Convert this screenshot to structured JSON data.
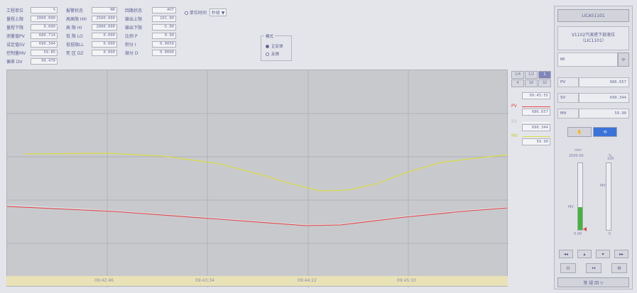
{
  "header": {
    "col1": [
      {
        "label": "工程单位",
        "value": "%"
      },
      {
        "label": "量程上限",
        "value": "2000.000"
      },
      {
        "label": "量程下限",
        "value": "0.000"
      },
      {
        "label": "测量值PV",
        "value": "689.714"
      },
      {
        "label": "设定值SV",
        "value": "690.344"
      },
      {
        "label": "控制量MV",
        "value": "59.85"
      },
      {
        "label": "偏差 DV",
        "value": "99.470"
      }
    ],
    "col2": [
      {
        "label": "报警状态",
        "value": "NR"
      },
      {
        "label": "高高限 HH",
        "value": "2500.000"
      },
      {
        "label": "高 限 HI",
        "value": "2000.000"
      },
      {
        "label": "低 限 LO",
        "value": "0.000"
      },
      {
        "label": "低低限LL",
        "value": "0.000"
      },
      {
        "label": "死 区 DZ",
        "value": "0.000"
      }
    ],
    "col3": [
      {
        "label": "回路状态",
        "value": "AUT"
      },
      {
        "label": "输出上限",
        "value": "101.00"
      },
      {
        "label": "输出下限",
        "value": "-5.00"
      },
      {
        "label": "比例 P",
        "value": "0.90"
      },
      {
        "label": "积分 I",
        "value": "0.0050"
      },
      {
        "label": "微分 D",
        "value": "0.0000"
      }
    ],
    "extra": {
      "label": "单位时间",
      "value": "秒级 ▼"
    },
    "mode": {
      "title": "模式",
      "options": [
        "正反馈",
        "反馈"
      ],
      "selected": 0
    }
  },
  "trend": {
    "time_labels": [
      "09:42:46",
      "09:43:34",
      "09:44:22",
      "09:45:10"
    ],
    "zoom_buttons": [
      "1/4",
      "1/2",
      "1",
      "4",
      "16",
      "32"
    ],
    "active_zoom": 2,
    "cursor_time": "09:45:55",
    "pv": {
      "label": "PV",
      "value": "686.657",
      "color": "#e2454a"
    },
    "sv": {
      "label": "SV",
      "value": "690.344",
      "color": "#e9e9e9"
    },
    "mv": {
      "label": "MV",
      "value": "59.90",
      "color": "#d9dc4a"
    }
  },
  "faceplate": {
    "tag": "LICA51101",
    "desc_line1": "V1102汽液塔下部液位",
    "desc_line2": "（LIC1101）",
    "alarm": "NR",
    "pv": {
      "label": "PV",
      "value": "686.657"
    },
    "sv": {
      "label": "SV",
      "value": "690.344"
    },
    "mv": {
      "label": "MV",
      "value": "59.90"
    },
    "bar_unit": "mm",
    "bar_top": "2000.00",
    "bar_bottom": "0.00",
    "pv_fill_fraction": 0.34,
    "mv_label": "MV",
    "mv_bottom": "0",
    "mv_top": "100",
    "pct_unit": "%",
    "arrows": [
      "◂◂",
      "▴",
      "▾",
      "▸▸"
    ],
    "icons": [
      "⊙",
      "⇔",
      "⊖"
    ],
    "bottom_button": "常 规 回 ▽"
  }
}
